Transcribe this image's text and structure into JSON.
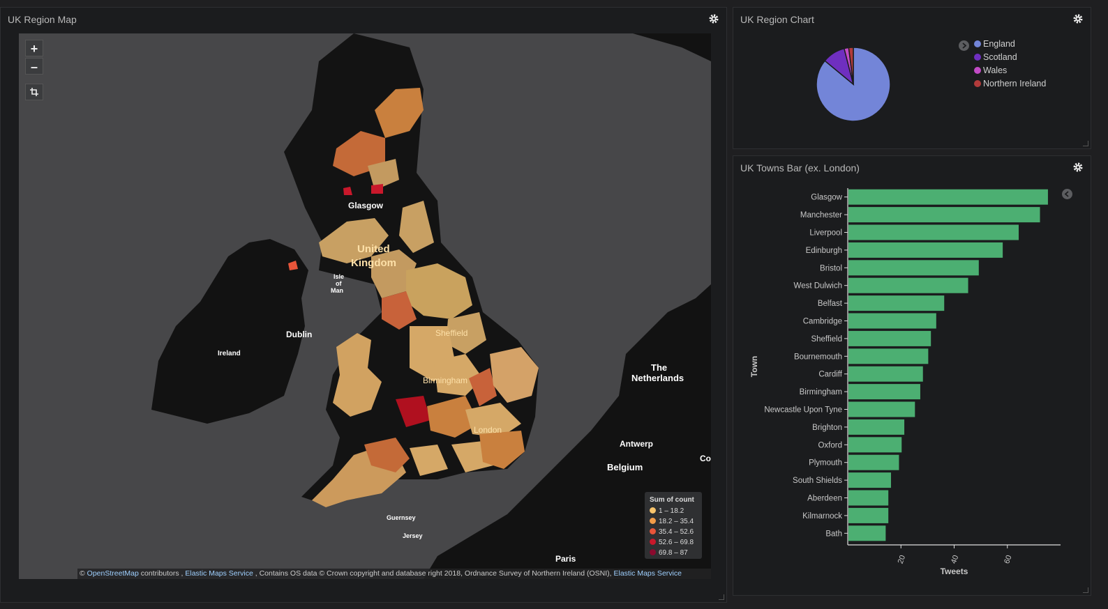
{
  "map_panel": {
    "title": "UK Region Map",
    "zoom_in": "+",
    "zoom_out": "–",
    "crop_icon": "crop-icon",
    "labels": {
      "glasgow": "Glasgow",
      "uk_line1": "United",
      "uk_line2": "Kingdom",
      "isle1": "Isle",
      "isle2": "of",
      "isle3": "Man",
      "dublin": "Dublin",
      "ireland": "Ireland",
      "sheffield": "Sheffield",
      "birmingham": "Birmingham",
      "london": "London",
      "netherlands1": "The",
      "netherlands2": "Netherlands",
      "antwerp": "Antwerp",
      "belgium": "Belgium",
      "guernsey": "Guernsey",
      "jersey": "Jersey",
      "paris": "Paris",
      "co": "Co"
    },
    "legend": {
      "title": "Sum of count",
      "rows": [
        {
          "label": "1 – 18.2",
          "color": "#f7c46c"
        },
        {
          "label": "18.2 – 35.4",
          "color": "#f39c48"
        },
        {
          "label": "35.4 – 52.6",
          "color": "#e8553a"
        },
        {
          "label": "52.6 – 69.8",
          "color": "#c9182b"
        },
        {
          "label": "69.8 – 87",
          "color": "#8b0a2e"
        }
      ]
    },
    "attribution": {
      "prefix": "©",
      "osm": "OpenStreetMap",
      "contributors": "contributors ,",
      "ems1": "Elastic Maps Service",
      "middle": ", Contains OS data © Crown copyright and database right 2018, Ordnance Survey of Northern Ireland (OSNI),",
      "ems2": "Elastic Maps Service"
    }
  },
  "pie_panel": {
    "title": "UK Region Chart",
    "legend": [
      {
        "label": "England",
        "color": "#7385d8"
      },
      {
        "label": "Scotland",
        "color": "#6f2fc0"
      },
      {
        "label": "Wales",
        "color": "#c24bc6"
      },
      {
        "label": "Northern Ireland",
        "color": "#b23b3b"
      }
    ]
  },
  "bar_panel": {
    "title": "UK Towns Bar (ex. London)"
  },
  "chart_data": [
    {
      "type": "pie",
      "title": "UK Region Chart",
      "categories": [
        "England",
        "Scotland",
        "Wales",
        "Northern Ireland"
      ],
      "values": [
        86,
        10,
        2,
        2
      ],
      "colors": [
        "#7385d8",
        "#6f2fc0",
        "#c24bc6",
        "#b23b3b"
      ],
      "legend": "top-right"
    },
    {
      "type": "bar",
      "orientation": "horizontal",
      "title": "UK Towns Bar (ex. London)",
      "xlabel": "Tweets",
      "ylabel": "Town",
      "categories": [
        "Glasgow",
        "Manchester",
        "Liverpool",
        "Edinburgh",
        "Bristol",
        "West Dulwich",
        "Belfast",
        "Cambridge",
        "Sheffield",
        "Bournemouth",
        "Cardiff",
        "Birmingham",
        "Newcastle Upon Tyne",
        "Brighton",
        "Oxford",
        "Plymouth",
        "South Shields",
        "Aberdeen",
        "Kilmarnock",
        "Bath"
      ],
      "values": [
        75,
        72,
        64,
        58,
        49,
        45,
        36,
        33,
        31,
        30,
        28,
        27,
        25,
        21,
        20,
        19,
        16,
        15,
        15,
        14
      ],
      "xlim": [
        0,
        80
      ],
      "xticks": [
        "20",
        "40",
        "60"
      ],
      "color": "#4caf72"
    }
  ]
}
